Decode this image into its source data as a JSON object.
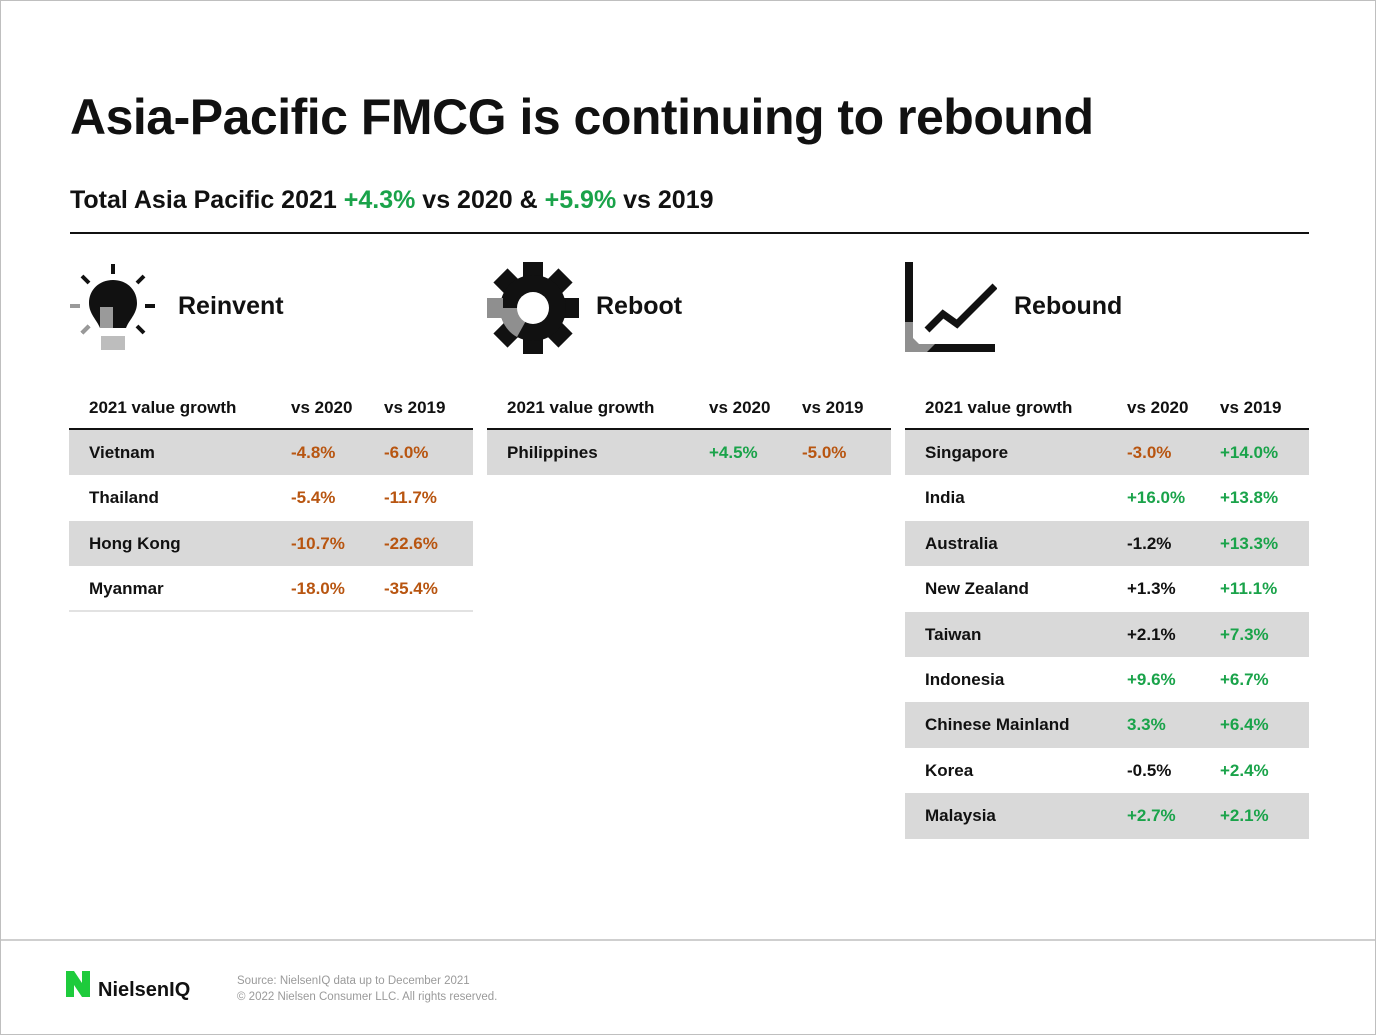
{
  "title": "Asia-Pacific FMCG is continuing to rebound",
  "subtitle": {
    "part1": "Total Asia Pacific 2021 ",
    "v2020": "+4.3%",
    "part2": " vs 2020 & ",
    "v2019": "+5.9%",
    "part3": " vs 2019"
  },
  "colors": {
    "positive": "#1aa34a",
    "negative": "#b85510",
    "neutral": "#111111",
    "shade": "#d9d9d9"
  },
  "chart_data": {
    "type": "table",
    "columns": [
      "2021 value growth",
      "vs 2020",
      "vs 2019"
    ],
    "sections": [
      {
        "name": "Reinvent",
        "icon": "lightbulb-icon",
        "rows": [
          {
            "country": "Vietnam",
            "vs2020": "-4.8%",
            "vs2019": "-6.0%",
            "c2020": "neg",
            "c2019": "neg"
          },
          {
            "country": "Thailand",
            "vs2020": "-5.4%",
            "vs2019": "-11.7%",
            "c2020": "neg",
            "c2019": "neg"
          },
          {
            "country": "Hong Kong",
            "vs2020": "-10.7%",
            "vs2019": "-22.6%",
            "c2020": "neg",
            "c2019": "neg"
          },
          {
            "country": "Myanmar",
            "vs2020": "-18.0%",
            "vs2019": "-35.4%",
            "c2020": "neg",
            "c2019": "neg"
          }
        ]
      },
      {
        "name": "Reboot",
        "icon": "gear-icon",
        "rows": [
          {
            "country": "Philippines",
            "vs2020": "+4.5%",
            "vs2019": "-5.0%",
            "c2020": "posv",
            "c2019": "neg"
          }
        ]
      },
      {
        "name": "Rebound",
        "icon": "growth-chart-icon",
        "rows": [
          {
            "country": "Singapore",
            "vs2020": "-3.0%",
            "vs2019": "+14.0%",
            "c2020": "neg",
            "c2019": "posv"
          },
          {
            "country": "India",
            "vs2020": "+16.0%",
            "vs2019": "+13.8%",
            "c2020": "posv",
            "c2019": "posv"
          },
          {
            "country": "Australia",
            "vs2020": "-1.2%",
            "vs2019": "+13.3%",
            "c2020": "neu",
            "c2019": "posv"
          },
          {
            "country": "New Zealand",
            "vs2020": "+1.3%",
            "vs2019": "+11.1%",
            "c2020": "neu",
            "c2019": "posv"
          },
          {
            "country": "Taiwan",
            "vs2020": "+2.1%",
            "vs2019": "+7.3%",
            "c2020": "neu",
            "c2019": "posv"
          },
          {
            "country": "Indonesia",
            "vs2020": "+9.6%",
            "vs2019": "+6.7%",
            "c2020": "posv",
            "c2019": "posv"
          },
          {
            "country": "Chinese Mainland",
            "vs2020": "3.3%",
            "vs2019": "+6.4%",
            "c2020": "posv",
            "c2019": "posv"
          },
          {
            "country": "Korea",
            "vs2020": "-0.5%",
            "vs2019": "+2.4%",
            "c2020": "neu",
            "c2019": "posv"
          },
          {
            "country": "Malaysia",
            "vs2020": "+2.7%",
            "vs2019": "+2.1%",
            "c2020": "posv",
            "c2019": "posv"
          }
        ]
      }
    ]
  },
  "footer": {
    "logo_text": "NielsenIQ",
    "source": "Source: NielsenIQ data up to December 2021",
    "copyright": "© 2022 Nielsen Consumer LLC. All rights reserved."
  }
}
